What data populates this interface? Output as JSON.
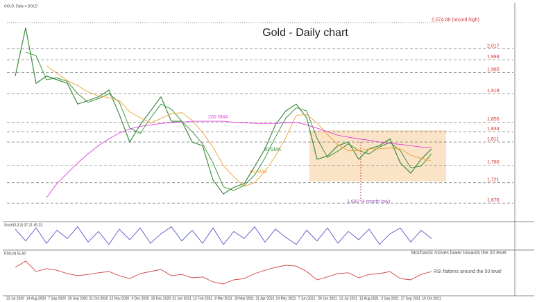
{
  "chart_data": [
    {
      "type": "line",
      "title": "Gold - Daily chart",
      "header": "GOLD, Daily = GOLD",
      "categories": [
        "23 Jul 2020",
        null,
        "14 Aug 2020",
        null,
        "7 Sep 2020",
        null,
        "29 Sep 2020",
        null,
        "21 Oct 2020",
        null,
        "12 Nov 2020",
        null,
        "4 Dec 2020",
        null,
        "29 Dec 2020",
        null,
        "21 Jan 2021",
        null,
        "12 Feb 2021",
        null,
        "8 Mar 2021",
        null,
        "30 Mar 2021",
        null,
        "21 Apr 2021",
        null,
        "14 May 2021",
        null,
        "7 Jun 2021",
        null,
        "29 Jun 2021",
        null,
        "21 Jul 2021",
        null,
        "12 Aug 2021",
        null,
        "3 Sep 2021",
        null,
        "27 Sep 2021",
        null,
        "19 Oct 2021"
      ],
      "series": [
        {
          "color": "#3d8b3d",
          "values": [
            1957,
            2064,
            1941,
            1957,
            1949,
            1941,
            1895,
            1903,
            1911,
            1926,
            1872,
            1811,
            1849,
            1880,
            1911,
            1857,
            1857,
            1811,
            1803,
            1727,
            1696,
            1711,
            1719,
            1757,
            1796,
            1849,
            1880,
            1895,
            1865,
            1773,
            1780,
            1803,
            1811,
            1773,
            1796,
            1803,
            1818,
            1765,
            1742,
            1773,
            1796
          ]
        },
        {
          "name": "20 SMA",
          "color": "#2e8b2e",
          "values": [
            null,
            2010,
            2002,
            1949,
            1953,
            1945,
            1918,
            1899,
            1907,
            1918,
            1899,
            1842,
            1830,
            1864,
            1895,
            1884,
            1857,
            1834,
            1807,
            1765,
            1712,
            1704,
            1715,
            1738,
            1776,
            1822,
            1864,
            1887,
            1880,
            1819,
            1777,
            1791,
            1807,
            1792,
            1785,
            1800,
            1810,
            1792,
            1754,
            1758,
            1785
          ]
        },
        {
          "name": "40 SMA",
          "color": "#f0a030",
          "values": [
            null,
            null,
            null,
            1980,
            1963,
            1947,
            1936,
            1922,
            1913,
            1909,
            1903,
            1878,
            1865,
            1853,
            1863,
            1874,
            1876,
            1859,
            1832,
            1800,
            1759,
            1734,
            1713,
            1721,
            1746,
            1780,
            1821,
            1870,
            1872,
            1853,
            1828,
            1805,
            1792,
            1792,
            1796,
            1796,
            1798,
            1796,
            1782,
            1775,
            1769
          ]
        },
        {
          "name": "200 SMA",
          "color": "#e040e0",
          "values": [
            null,
            null,
            null,
            1688,
            1719,
            1742,
            1765,
            1785,
            1803,
            1818,
            1831,
            1840,
            1846,
            1849,
            1852,
            1854,
            1855,
            1857,
            1857,
            1857,
            1857,
            1855,
            1854,
            1852,
            1852,
            1852,
            1854,
            1855,
            1849,
            1842,
            1834,
            1826,
            1822,
            1818,
            1815,
            1811,
            1808,
            1806,
            1803,
            1800,
            1799
          ]
        }
      ],
      "ylim": [
        1638,
        2113
      ],
      "yticks": [
        {
          "value": 2074.88,
          "label": "2,074.88 (record high)"
        },
        {
          "value": 2017,
          "label": "2,017"
        },
        {
          "value": 1993,
          "label": "1,993"
        },
        {
          "value": 1965,
          "label": "1,965"
        },
        {
          "value": 1918,
          "label": "1,918"
        },
        {
          "value": 1855,
          "label": "1,855"
        },
        {
          "value": 1834,
          "label": "1,834"
        },
        {
          "value": 1811,
          "label": "1,811"
        },
        {
          "value": 1760,
          "label": "1,760"
        },
        {
          "value": 1721,
          "label": "1,721"
        },
        {
          "value": 1676,
          "label": "1,676"
        }
      ],
      "annotation": "1,680 (4-month low)"
    },
    {
      "type": "line",
      "label": "Stoch(5,3,3) 37.21 45.23",
      "annotation": "Stochastic moves lower towards the 20 level",
      "ylim": [
        0,
        100
      ],
      "series": [
        {
          "color": "#5555cc",
          "values": [
            80,
            30,
            85,
            20,
            75,
            40,
            90,
            25,
            70,
            15,
            80,
            35,
            85,
            20,
            60,
            90,
            30,
            75,
            20,
            85,
            15,
            70,
            40,
            90,
            25,
            80,
            45,
            15,
            75,
            30,
            85,
            20,
            70,
            35,
            80,
            15,
            60,
            85,
            25,
            75,
            40
          ]
        }
      ]
    },
    {
      "type": "line",
      "label": "RSI(14) 51.60",
      "annotation": "RSI flattens around the 50 level",
      "ylim": [
        0,
        100
      ],
      "series": [
        {
          "color": "#d04040",
          "values": [
            65,
            80,
            55,
            62,
            58,
            50,
            45,
            48,
            52,
            55,
            45,
            38,
            50,
            55,
            60,
            45,
            48,
            40,
            42,
            30,
            25,
            35,
            38,
            50,
            58,
            65,
            70,
            68,
            55,
            35,
            42,
            50,
            52,
            40,
            48,
            50,
            55,
            38,
            35,
            48,
            55
          ]
        }
      ]
    }
  ]
}
